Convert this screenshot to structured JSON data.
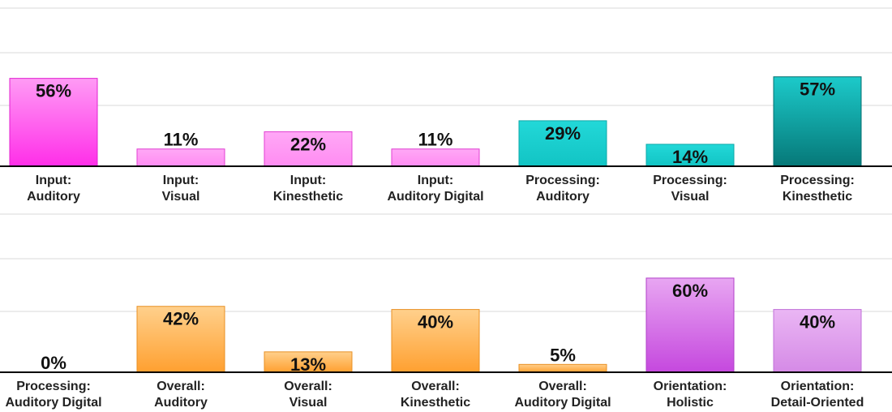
{
  "chart_data": [
    {
      "type": "bar",
      "categories": [
        [
          "Input:",
          "Auditory"
        ],
        [
          "Input:",
          "Visual"
        ],
        [
          "Input:",
          "Kinesthetic"
        ],
        [
          "Input:",
          "Auditory Digital"
        ],
        [
          "Processing:",
          "Auditory"
        ],
        [
          "Processing:",
          "Visual"
        ],
        [
          "Processing:",
          "Kinesthetic"
        ]
      ],
      "values": [
        56,
        11,
        22,
        11,
        29,
        14,
        57
      ],
      "value_labels": [
        "56%",
        "11%",
        "22%",
        "11%",
        "29%",
        "14%",
        "57%"
      ],
      "palettes": [
        "magenta-strong",
        "magenta",
        "magenta",
        "magenta",
        "teal",
        "teal",
        "teal-dark"
      ],
      "ylim": [
        0,
        100
      ],
      "grid": true,
      "title": "",
      "xlabel": "",
      "ylabel": ""
    },
    {
      "type": "bar",
      "categories": [
        [
          "Processing:",
          "Auditory Digital"
        ],
        [
          "Overall:",
          "Auditory"
        ],
        [
          "Overall:",
          "Visual"
        ],
        [
          "Overall:",
          "Kinesthetic"
        ],
        [
          "Overall:",
          "Auditory Digital"
        ],
        [
          "Orientation:",
          "Holistic"
        ],
        [
          "Orientation:",
          "Detail-Oriented"
        ]
      ],
      "values": [
        0,
        42,
        13,
        40,
        5,
        60,
        40
      ],
      "value_labels": [
        "0%",
        "42%",
        "13%",
        "40%",
        "5%",
        "60%",
        "40%"
      ],
      "palettes": [
        "teal",
        "orange",
        "orange",
        "orange",
        "orange",
        "purple-strong",
        "purple"
      ],
      "ylim": [
        0,
        100
      ],
      "grid": true,
      "title": "",
      "xlabel": "",
      "ylabel": ""
    }
  ],
  "colors": {
    "magenta-strong": {
      "top": "#ff9bf5",
      "bottom": "#ff2ee8",
      "stroke": "#e020cf"
    },
    "magenta": {
      "top": "#ffa8f6",
      "bottom": "#ff8cf2",
      "stroke": "#e040d2"
    },
    "teal": {
      "top": "#22d8d8",
      "bottom": "#12c4c4",
      "stroke": "#0ea9a9"
    },
    "teal-dark": {
      "top": "#1ccaca",
      "bottom": "#067878",
      "stroke": "#057070"
    },
    "orange": {
      "top": "#ffd08c",
      "bottom": "#ffa030",
      "stroke": "#e89024"
    },
    "purple-strong": {
      "top": "#e8a6f2",
      "bottom": "#c548de",
      "stroke": "#b040c8"
    },
    "purple": {
      "top": "#eab6f4",
      "bottom": "#d58ae6",
      "stroke": "#c070d8"
    }
  }
}
